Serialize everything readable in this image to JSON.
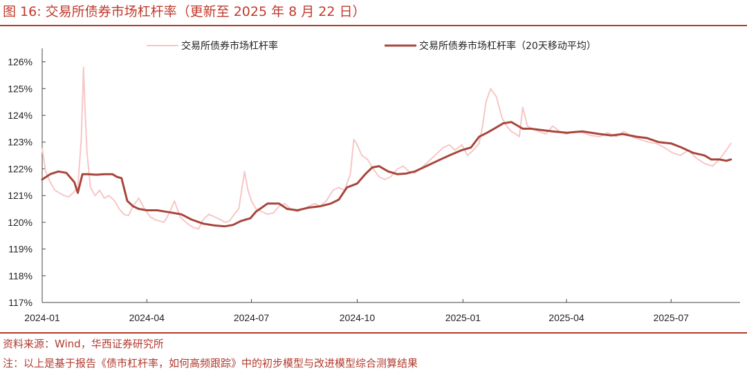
{
  "header": {
    "title": "图 16:  交易所债券市场杠杆率（更新至 2025 年 8 月 22 日）"
  },
  "footer": {
    "source": "资料来源：Wind，华西证券研究所",
    "note": "注：以上是基于报告《债市杠杆率，如何高频跟踪》中的初步模型与改进模型综合测算结果"
  },
  "colors": {
    "accent": "#b03a2e",
    "daily_series": "#f7c6c6",
    "ma_series": "#a8453b",
    "axis": "#444444"
  },
  "chart_data": {
    "type": "line",
    "x_ticks": [
      "2024-01",
      "2024-04",
      "2024-07",
      "2024-10",
      "2025-01",
      "2025-04",
      "2025-07"
    ],
    "y_ticks": [
      "117%",
      "118%",
      "119%",
      "120%",
      "121%",
      "122%",
      "123%",
      "124%",
      "125%",
      "126%"
    ],
    "ylim": [
      117,
      126.3
    ],
    "xlim": [
      "2024-01-01",
      "2025-08-30"
    ],
    "grid": false,
    "legend_position": "top",
    "series": [
      {
        "name": "交易所债券市场杠杆率",
        "x": [
          "2024-01-01",
          "2024-01-04",
          "2024-01-08",
          "2024-01-12",
          "2024-01-16",
          "2024-01-20",
          "2024-01-24",
          "2024-01-28",
          "2024-02-01",
          "2024-02-04",
          "2024-02-06",
          "2024-02-07",
          "2024-02-09",
          "2024-02-12",
          "2024-02-16",
          "2024-02-20",
          "2024-02-24",
          "2024-02-28",
          "2024-03-04",
          "2024-03-08",
          "2024-03-12",
          "2024-03-16",
          "2024-03-20",
          "2024-03-25",
          "2024-03-30",
          "2024-04-04",
          "2024-04-08",
          "2024-04-12",
          "2024-04-16",
          "2024-04-20",
          "2024-04-25",
          "2024-04-30",
          "2024-05-05",
          "2024-05-08",
          "2024-05-12",
          "2024-05-16",
          "2024-05-20",
          "2024-05-25",
          "2024-05-30",
          "2024-06-04",
          "2024-06-08",
          "2024-06-12",
          "2024-06-16",
          "2024-06-20",
          "2024-06-25",
          "2024-06-28",
          "2024-07-01",
          "2024-07-05",
          "2024-07-10",
          "2024-07-15",
          "2024-07-20",
          "2024-07-25",
          "2024-07-30",
          "2024-08-04",
          "2024-08-10",
          "2024-08-15",
          "2024-08-20",
          "2024-08-25",
          "2024-08-30",
          "2024-09-04",
          "2024-09-10",
          "2024-09-15",
          "2024-09-20",
          "2024-09-25",
          "2024-09-28",
          "2024-10-01",
          "2024-10-05",
          "2024-10-10",
          "2024-10-15",
          "2024-10-20",
          "2024-10-25",
          "2024-10-30",
          "2024-11-05",
          "2024-11-10",
          "2024-11-15",
          "2024-11-20",
          "2024-11-25",
          "2024-11-30",
          "2024-12-05",
          "2024-12-10",
          "2024-12-15",
          "2024-12-20",
          "2024-12-25",
          "2024-12-31",
          "2025-01-05",
          "2025-01-10",
          "2025-01-15",
          "2025-01-18",
          "2025-01-21",
          "2025-01-25",
          "2025-01-30",
          "2025-02-04",
          "2025-02-08",
          "2025-02-12",
          "2025-02-16",
          "2025-02-19",
          "2025-02-22",
          "2025-02-26",
          "2025-03-02",
          "2025-03-08",
          "2025-03-14",
          "2025-03-20",
          "2025-03-26",
          "2025-04-01",
          "2025-04-08",
          "2025-04-15",
          "2025-04-22",
          "2025-04-30",
          "2025-05-07",
          "2025-05-14",
          "2025-05-21",
          "2025-05-28",
          "2025-06-04",
          "2025-06-11",
          "2025-06-18",
          "2025-06-25",
          "2025-07-02",
          "2025-07-09",
          "2025-07-16",
          "2025-07-23",
          "2025-07-30",
          "2025-08-06",
          "2025-08-12",
          "2025-08-18",
          "2025-08-22"
        ],
        "values": [
          122.75,
          121.9,
          121.5,
          121.2,
          121.1,
          121.0,
          120.95,
          121.1,
          121.3,
          123.1,
          125.8,
          124.5,
          122.6,
          121.3,
          121.0,
          121.2,
          120.9,
          121.0,
          120.8,
          120.5,
          120.3,
          120.25,
          120.6,
          120.9,
          120.5,
          120.2,
          120.1,
          120.05,
          120.0,
          120.3,
          120.8,
          120.2,
          120.0,
          119.9,
          119.8,
          119.75,
          120.1,
          120.3,
          120.2,
          120.1,
          120.0,
          120.05,
          120.3,
          120.5,
          121.9,
          121.2,
          120.8,
          120.5,
          120.4,
          120.3,
          120.35,
          120.6,
          120.7,
          120.5,
          120.4,
          120.5,
          120.6,
          120.7,
          120.6,
          120.8,
          121.2,
          121.3,
          121.2,
          121.8,
          123.1,
          122.9,
          122.5,
          122.35,
          122.0,
          121.7,
          121.6,
          121.7,
          122.0,
          122.1,
          121.9,
          121.85,
          122.0,
          122.2,
          122.4,
          122.6,
          122.8,
          122.9,
          122.7,
          122.9,
          122.5,
          122.7,
          122.95,
          123.6,
          124.5,
          125.0,
          124.7,
          123.9,
          123.6,
          123.4,
          123.3,
          123.2,
          124.3,
          123.6,
          123.5,
          123.4,
          123.3,
          123.6,
          123.4,
          123.3,
          123.4,
          123.35,
          123.25,
          123.2,
          123.35,
          123.2,
          123.4,
          123.2,
          123.1,
          123.0,
          122.95,
          122.8,
          122.6,
          122.5,
          122.7,
          122.4,
          122.2,
          122.1,
          122.35,
          122.7,
          122.95
        ]
      },
      {
        "name": "交易所债券市场杠杆率（20天移动平均）",
        "x": [
          "2024-01-01",
          "2024-01-08",
          "2024-01-15",
          "2024-01-22",
          "2024-01-29",
          "2024-02-01",
          "2024-02-05",
          "2024-02-10",
          "2024-02-17",
          "2024-02-24",
          "2024-03-02",
          "2024-03-06",
          "2024-03-10",
          "2024-03-15",
          "2024-03-20",
          "2024-03-25",
          "2024-04-01",
          "2024-04-10",
          "2024-04-20",
          "2024-05-01",
          "2024-05-10",
          "2024-05-20",
          "2024-05-30",
          "2024-06-08",
          "2024-06-15",
          "2024-06-22",
          "2024-06-30",
          "2024-07-05",
          "2024-07-15",
          "2024-07-25",
          "2024-08-01",
          "2024-08-10",
          "2024-08-20",
          "2024-08-30",
          "2024-09-08",
          "2024-09-15",
          "2024-09-22",
          "2024-10-01",
          "2024-10-08",
          "2024-10-14",
          "2024-10-20",
          "2024-10-28",
          "2024-11-05",
          "2024-11-12",
          "2024-11-20",
          "2024-11-30",
          "2024-12-10",
          "2024-12-20",
          "2024-12-31",
          "2025-01-08",
          "2025-01-15",
          "2025-01-22",
          "2025-01-28",
          "2025-02-05",
          "2025-02-12",
          "2025-02-18",
          "2025-02-22",
          "2025-03-01",
          "2025-03-10",
          "2025-03-20",
          "2025-04-01",
          "2025-04-15",
          "2025-04-30",
          "2025-05-10",
          "2025-05-20",
          "2025-06-01",
          "2025-06-10",
          "2025-06-20",
          "2025-07-01",
          "2025-07-10",
          "2025-07-20",
          "2025-07-30",
          "2025-08-05",
          "2025-08-12",
          "2025-08-18",
          "2025-08-22"
        ],
        "values": [
          121.6,
          121.8,
          121.9,
          121.85,
          121.5,
          121.1,
          121.8,
          121.8,
          121.78,
          121.8,
          121.8,
          121.7,
          121.65,
          120.8,
          120.6,
          120.5,
          120.45,
          120.45,
          120.38,
          120.3,
          120.1,
          119.95,
          119.88,
          119.85,
          119.9,
          120.05,
          120.15,
          120.4,
          120.7,
          120.7,
          120.5,
          120.45,
          120.55,
          120.6,
          120.7,
          120.85,
          121.3,
          121.45,
          121.8,
          122.05,
          122.1,
          121.9,
          121.8,
          121.82,
          121.9,
          122.1,
          122.3,
          122.5,
          122.7,
          122.8,
          123.2,
          123.35,
          123.5,
          123.7,
          123.75,
          123.6,
          123.5,
          123.5,
          123.45,
          123.4,
          123.35,
          123.4,
          123.3,
          123.25,
          123.3,
          123.2,
          123.15,
          123.0,
          122.95,
          122.8,
          122.6,
          122.5,
          122.35,
          122.35,
          122.3,
          122.35
        ]
      }
    ]
  }
}
